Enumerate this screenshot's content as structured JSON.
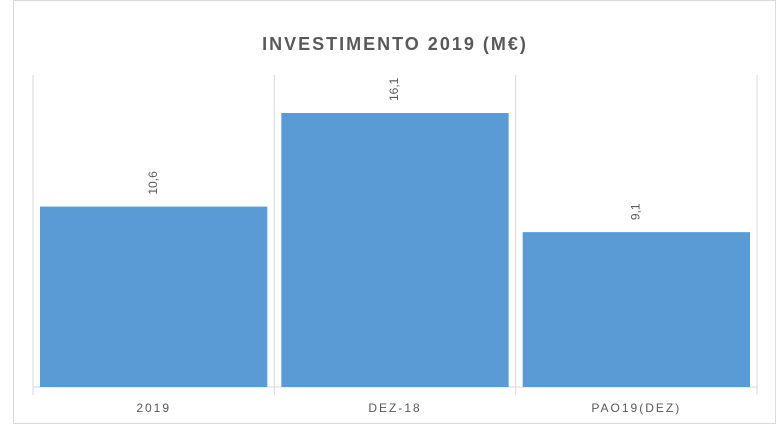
{
  "chart_data": {
    "type": "bar",
    "title": "INVESTIMENTO 2019 (M€)",
    "categories": [
      "2019",
      "DEZ-18",
      "PAO19(DEZ)"
    ],
    "values": [
      10.6,
      16.1,
      9.1
    ],
    "value_labels": [
      "10,6",
      "16,1",
      "9,1"
    ],
    "color": "#5b9bd5"
  }
}
